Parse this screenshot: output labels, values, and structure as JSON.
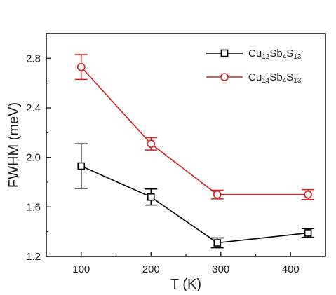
{
  "chart_data": {
    "type": "line",
    "xlabel": "T (K)",
    "ylabel": "FWHM (meV)",
    "xlim": [
      50,
      450
    ],
    "ylim": [
      1.2,
      3.0
    ],
    "xticks": [
      100,
      200,
      300,
      400
    ],
    "yticks": [
      1.2,
      1.6,
      2.0,
      2.4,
      2.8
    ],
    "x_tick_labels": [
      "100",
      "200",
      "300",
      "400"
    ],
    "y_tick_labels": [
      "1.2",
      "1.6",
      "2.0",
      "2.4",
      "2.8"
    ],
    "legend_position": "top-right",
    "series": [
      {
        "name": "Cu12Sb4S13",
        "legend_parts": [
          [
            "Cu",
            ""
          ],
          [
            "12",
            "sub"
          ],
          [
            "Sb",
            ""
          ],
          [
            "4",
            "sub"
          ],
          [
            "S",
            ""
          ],
          [
            "13",
            "sub"
          ]
        ],
        "color": "#000000",
        "marker": "square",
        "x": [
          100,
          200,
          295,
          425
        ],
        "y": [
          1.93,
          1.68,
          1.31,
          1.39
        ],
        "err": [
          0.18,
          0.065,
          0.04,
          0.035
        ]
      },
      {
        "name": "Cu14Sb4S13",
        "legend_parts": [
          [
            "Cu",
            ""
          ],
          [
            "14",
            "sub"
          ],
          [
            "Sb",
            ""
          ],
          [
            "4",
            "sub"
          ],
          [
            "S",
            ""
          ],
          [
            "13",
            "sub"
          ]
        ],
        "color": "#d62020",
        "marker": "circle",
        "x": [
          100,
          200,
          295,
          425
        ],
        "y": [
          2.73,
          2.11,
          1.7,
          1.7
        ],
        "err": [
          0.1,
          0.05,
          0.035,
          0.04
        ]
      }
    ]
  }
}
